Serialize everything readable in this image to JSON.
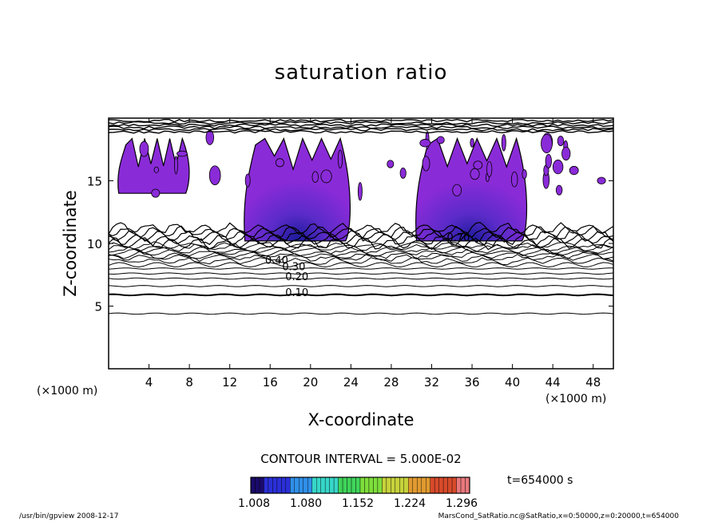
{
  "chart_data": {
    "type": "contour",
    "title": "saturation ratio",
    "xlabel": "X-coordinate",
    "ylabel": "Z-coordinate",
    "x_unit": "(×1000 m)",
    "xlim": [
      0,
      50
    ],
    "ylim": [
      0,
      20
    ],
    "x_ticks": [
      4,
      8,
      12,
      16,
      20,
      24,
      28,
      32,
      36,
      40,
      44,
      48
    ],
    "y_ticks": [
      5,
      10,
      15
    ],
    "contour_labels": [
      {
        "text": "0.10",
        "x": 17.5,
        "y": 6.1
      },
      {
        "text": "0.20",
        "x": 17.5,
        "y": 7.4
      },
      {
        "text": "0.30",
        "x": 17.2,
        "y": 8.2
      },
      {
        "text": "0.40",
        "x": 15.5,
        "y": 8.7
      },
      {
        "text": "0.70",
        "x": 33.5,
        "y": 10.5
      }
    ],
    "contour_interval": "CONTOUR INTERVAL = 5.000E-02",
    "colorbar": {
      "min": 1.008,
      "max": 1.3,
      "tick_labels": [
        "1.008",
        "1.080",
        "1.152",
        "1.224",
        "1.296"
      ],
      "colors": [
        "#1a0a6b",
        "#2a2fd8",
        "#2f8fe8",
        "#36d6c8",
        "#3fd45a",
        "#7ede3a",
        "#c7d23a",
        "#e09a30",
        "#d84a2a",
        "#e8787c"
      ],
      "fill_color": "#8a2bd8"
    },
    "supersaturated_regions": [
      {
        "x_range": [
          13.5,
          24
        ],
        "z_range": [
          10.2,
          18.5
        ]
      },
      {
        "x_range": [
          30.5,
          41.5
        ],
        "z_range": [
          10.2,
          18.5
        ]
      },
      {
        "x_range": [
          1,
          8
        ],
        "z_range": [
          14,
          18.5
        ]
      }
    ],
    "time": "t=654000 s"
  },
  "footer": {
    "left": "/usr/bin/gpview   2008-12-17",
    "right": "MarsCond_SatRatio.nc@SatRatio,x=0:50000,z=0:20000,t=654000"
  }
}
